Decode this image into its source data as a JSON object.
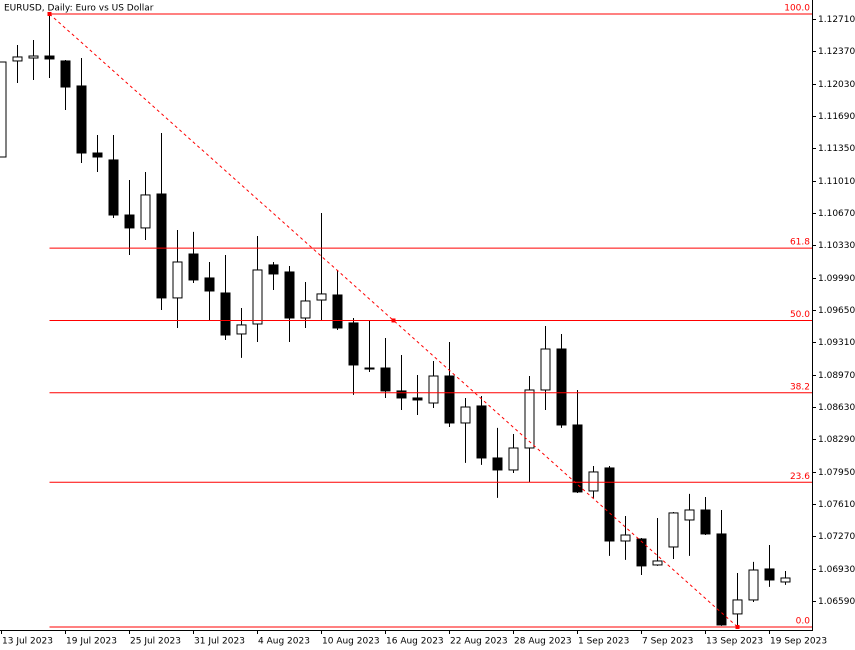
{
  "chart_data": {
    "type": "candlestick",
    "title": "EURUSD, Daily:  Euro vs US Dollar",
    "categories": [
      "13 Jul 2023",
      null,
      null,
      null,
      "19 Jul 2023",
      null,
      null,
      null,
      "25 Jul 2023",
      null,
      null,
      null,
      "31 Jul 2023",
      null,
      null,
      null,
      "4 Aug 2023",
      null,
      null,
      null,
      "10 Aug 2023",
      null,
      null,
      null,
      "16 Aug 2023",
      null,
      null,
      null,
      "22 Aug 2023",
      null,
      null,
      null,
      "28 Aug 2023",
      null,
      null,
      null,
      "1 Sep 2023",
      null,
      null,
      null,
      "7 Sep 2023",
      null,
      null,
      null,
      "13 Sep 2023",
      null,
      null,
      null,
      "19 Sep 2023",
      null
    ],
    "open": [
      1.11259,
      1.12269,
      1.123,
      1.12321,
      1.12269,
      1.12006,
      1.11301,
      1.11228,
      1.10649,
      1.10513,
      1.1087,
      1.09777,
      1.10239,
      1.09987,
      1.09829,
      1.09398,
      1.09503,
      1.10124,
      1.1005,
      1.09566,
      1.09755,
      1.09808,
      1.09514,
      1.0904,
      1.0904,
      1.08799,
      1.08725,
      1.08672,
      1.08956,
      1.08462,
      1.08641,
      1.08094,
      1.07968,
      1.08199,
      1.08809,
      1.0924,
      1.08441,
      1.07747,
      1.07989,
      1.07221,
      1.07242,
      1.06969,
      1.07158,
      1.07442,
      1.07547,
      1.07295,
      1.06454,
      1.06601,
      1.06927,
      1.0679
    ],
    "high": [
      1.12258,
      1.12437,
      1.12489,
      1.12763,
      1.12279,
      1.123,
      1.1149,
      1.1149,
      1.11017,
      1.11101,
      1.11512,
      1.10492,
      1.10471,
      1.10155,
      1.10229,
      1.09671,
      1.10428,
      1.10155,
      1.10113,
      1.09945,
      1.1067,
      1.10071,
      1.09566,
      1.09545,
      1.09356,
      1.09177,
      1.08967,
      1.09114,
      1.09314,
      1.08725,
      1.08746,
      1.0841,
      1.08346,
      1.08956,
      1.09482,
      1.09398,
      1.08809,
      1.0801,
      1.0801,
      1.07484,
      1.07253,
      1.07463,
      1.07526,
      1.07716,
      1.07684,
      1.07547,
      1.06885,
      1.07001,
      1.07179,
      1.06906
    ],
    "low": [
      1.11259,
      1.12037,
      1.12069,
      1.1209,
      1.11753,
      1.11196,
      1.11101,
      1.10618,
      1.10229,
      1.10386,
      1.0965,
      1.09461,
      1.09934,
      1.09545,
      1.09335,
      1.09146,
      1.09314,
      1.09861,
      1.09314,
      1.09461,
      1.09545,
      1.0944,
      1.08757,
      1.08998,
      1.08725,
      1.08599,
      1.08546,
      1.0862,
      1.0842,
      1.08042,
      1.08021,
      1.07674,
      1.07936,
      1.07842,
      1.08599,
      1.0841,
      1.07726,
      1.07674,
      1.07064,
      1.07022,
      1.06864,
      1.06959,
      1.07032,
      1.07064,
      1.07284,
      1.06328,
      1.06317,
      1.0658,
      1.06738,
      1.06759
    ],
    "close": [
      1.12258,
      1.12311,
      1.12321,
      1.1229,
      1.11995,
      1.11301,
      1.11259,
      1.10649,
      1.10513,
      1.1086,
      1.09777,
      1.10155,
      1.09966,
      1.0985,
      1.09387,
      1.09493,
      1.10071,
      1.10029,
      1.09566,
      1.09745,
      1.09819,
      1.09461,
      1.09072,
      1.0903,
      1.08799,
      1.08725,
      1.08704,
      1.08956,
      1.08462,
      1.0863,
      1.08094,
      1.07968,
      1.08199,
      1.08809,
      1.0924,
      1.08441,
      1.07737,
      1.07947,
      1.07221,
      1.07284,
      1.06959,
      1.07011,
      1.07516,
      1.07547,
      1.07295,
      1.06338,
      1.06601,
      1.06916,
      1.06811,
      1.06832
    ],
    "up_color": "#ffffff",
    "down_color": "#000000",
    "ylim": [
      1.06285,
      1.1291
    ],
    "yticks": [
      {
        "value": 1.1271,
        "label": "1.12710"
      },
      {
        "value": 1.1237,
        "label": "1.12370"
      },
      {
        "value": 1.1203,
        "label": "1.12030"
      },
      {
        "value": 1.1169,
        "label": "1.11690"
      },
      {
        "value": 1.1135,
        "label": "1.11350"
      },
      {
        "value": 1.1101,
        "label": "1.11010"
      },
      {
        "value": 1.1067,
        "label": "1.10670"
      },
      {
        "value": 1.1033,
        "label": "1.10330"
      },
      {
        "value": 1.0999,
        "label": "1.09990"
      },
      {
        "value": 1.0965,
        "label": "1.09650"
      },
      {
        "value": 1.0931,
        "label": "1.09310"
      },
      {
        "value": 1.0897,
        "label": "1.08970"
      },
      {
        "value": 1.0863,
        "label": "1.08630"
      },
      {
        "value": 1.0829,
        "label": "1.08290"
      },
      {
        "value": 1.0795,
        "label": "1.07950"
      },
      {
        "value": 1.0761,
        "label": "1.07610"
      },
      {
        "value": 1.0727,
        "label": "1.07270"
      },
      {
        "value": 1.0693,
        "label": "1.06930"
      },
      {
        "value": 1.0659,
        "label": "1.06590"
      }
    ],
    "fibonacci": {
      "high": 1.12763,
      "low": 1.06317,
      "color": "#ff0000",
      "levels": [
        {
          "value": 100,
          "label": "100.0"
        },
        61.8,
        {
          "value": 50,
          "label": "50.0"
        },
        38.2,
        23.6,
        {
          "value": 0,
          "label": "0.0"
        }
      ]
    }
  }
}
